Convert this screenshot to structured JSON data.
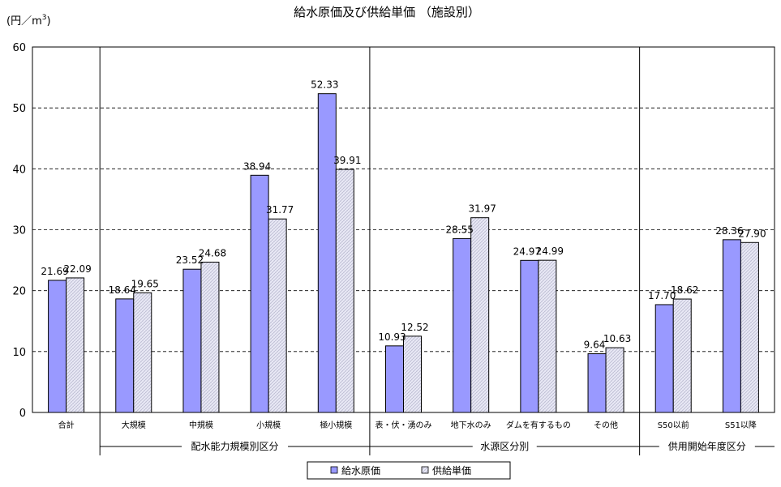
{
  "chart_data": {
    "type": "bar",
    "title": "給水原価及び供給単価 （施設別）",
    "ylabel": "(円／m",
    "ylabel_sup": "3",
    "ylabel_close": ")",
    "ylim": [
      0,
      60
    ],
    "yticks": [
      "0",
      "10",
      "20",
      "30",
      "40",
      "50",
      "60"
    ],
    "grid": "dashed",
    "legend_position": "bottom",
    "categories": [
      "合計",
      "大規模",
      "中規模",
      "小規模",
      "極小規模",
      "表・伏・湧のみ",
      "地下水のみ",
      "ダムを有するもの",
      "その他",
      "S50以前",
      "S51以降"
    ],
    "groups": [
      {
        "label": "配水能力規模別区分"
      },
      {
        "label": "水源区分別"
      },
      {
        "label": "供用開始年度区分"
      }
    ],
    "series": [
      {
        "name": "給水原価",
        "color": "#9999ff",
        "values": [
          21.69,
          18.64,
          23.52,
          38.94,
          52.33,
          10.93,
          28.55,
          24.97,
          9.64,
          17.7,
          28.36
        ],
        "labels": [
          "21.69",
          "18.64",
          "23.52",
          "38.94",
          "52.33",
          "10.93",
          "28.55",
          "24.97",
          "9.64",
          "17.70",
          "28.36"
        ]
      },
      {
        "name": "供給単価",
        "color": "#e4e4f4",
        "values": [
          22.09,
          19.65,
          24.68,
          31.77,
          39.91,
          12.52,
          31.97,
          24.99,
          10.63,
          18.62,
          27.9
        ],
        "labels": [
          "22.09",
          "19.65",
          "24.68",
          "31.77",
          "39.91",
          "12.52",
          "31.97",
          "24.99",
          "10.63",
          "18.62",
          "27.90"
        ]
      }
    ]
  }
}
